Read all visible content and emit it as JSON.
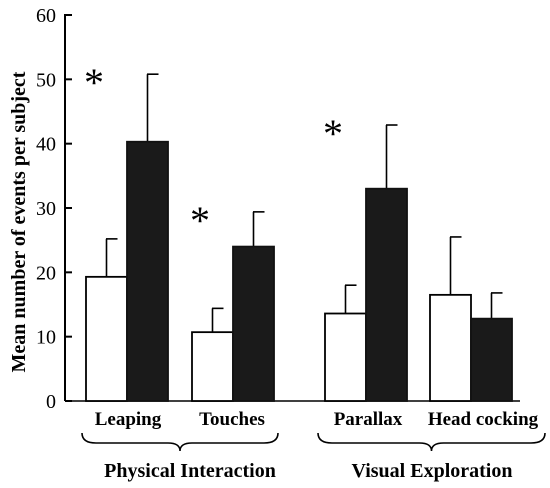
{
  "chart_data": {
    "type": "bar",
    "ylabel": "Mean number of events per subject",
    "ylim": [
      0,
      60
    ],
    "yticks": [
      "0",
      "10",
      "20",
      "30",
      "40",
      "50",
      "60"
    ],
    "categories": [
      "Leaping",
      "Touches",
      "Parallax",
      "Head cocking"
    ],
    "groups": [
      {
        "label": "Physical Interaction",
        "categories": [
          "Leaping",
          "Touches"
        ]
      },
      {
        "label": "Visual Exploration",
        "categories": [
          "Parallax",
          "Head cocking"
        ]
      }
    ],
    "series": [
      {
        "color": "#ffffff",
        "values": [
          19.3,
          10.7,
          13.6,
          16.5
        ],
        "errors": [
          25.2,
          14.4,
          18.0,
          25.5
        ]
      },
      {
        "color": "#1a1a1a",
        "values": [
          40.3,
          24.0,
          33.0,
          12.8
        ],
        "errors": [
          50.8,
          29.4,
          42.9,
          16.8
        ]
      }
    ],
    "significance_marker": "*",
    "significant": [
      true,
      true,
      true,
      false
    ],
    "grid": false
  }
}
